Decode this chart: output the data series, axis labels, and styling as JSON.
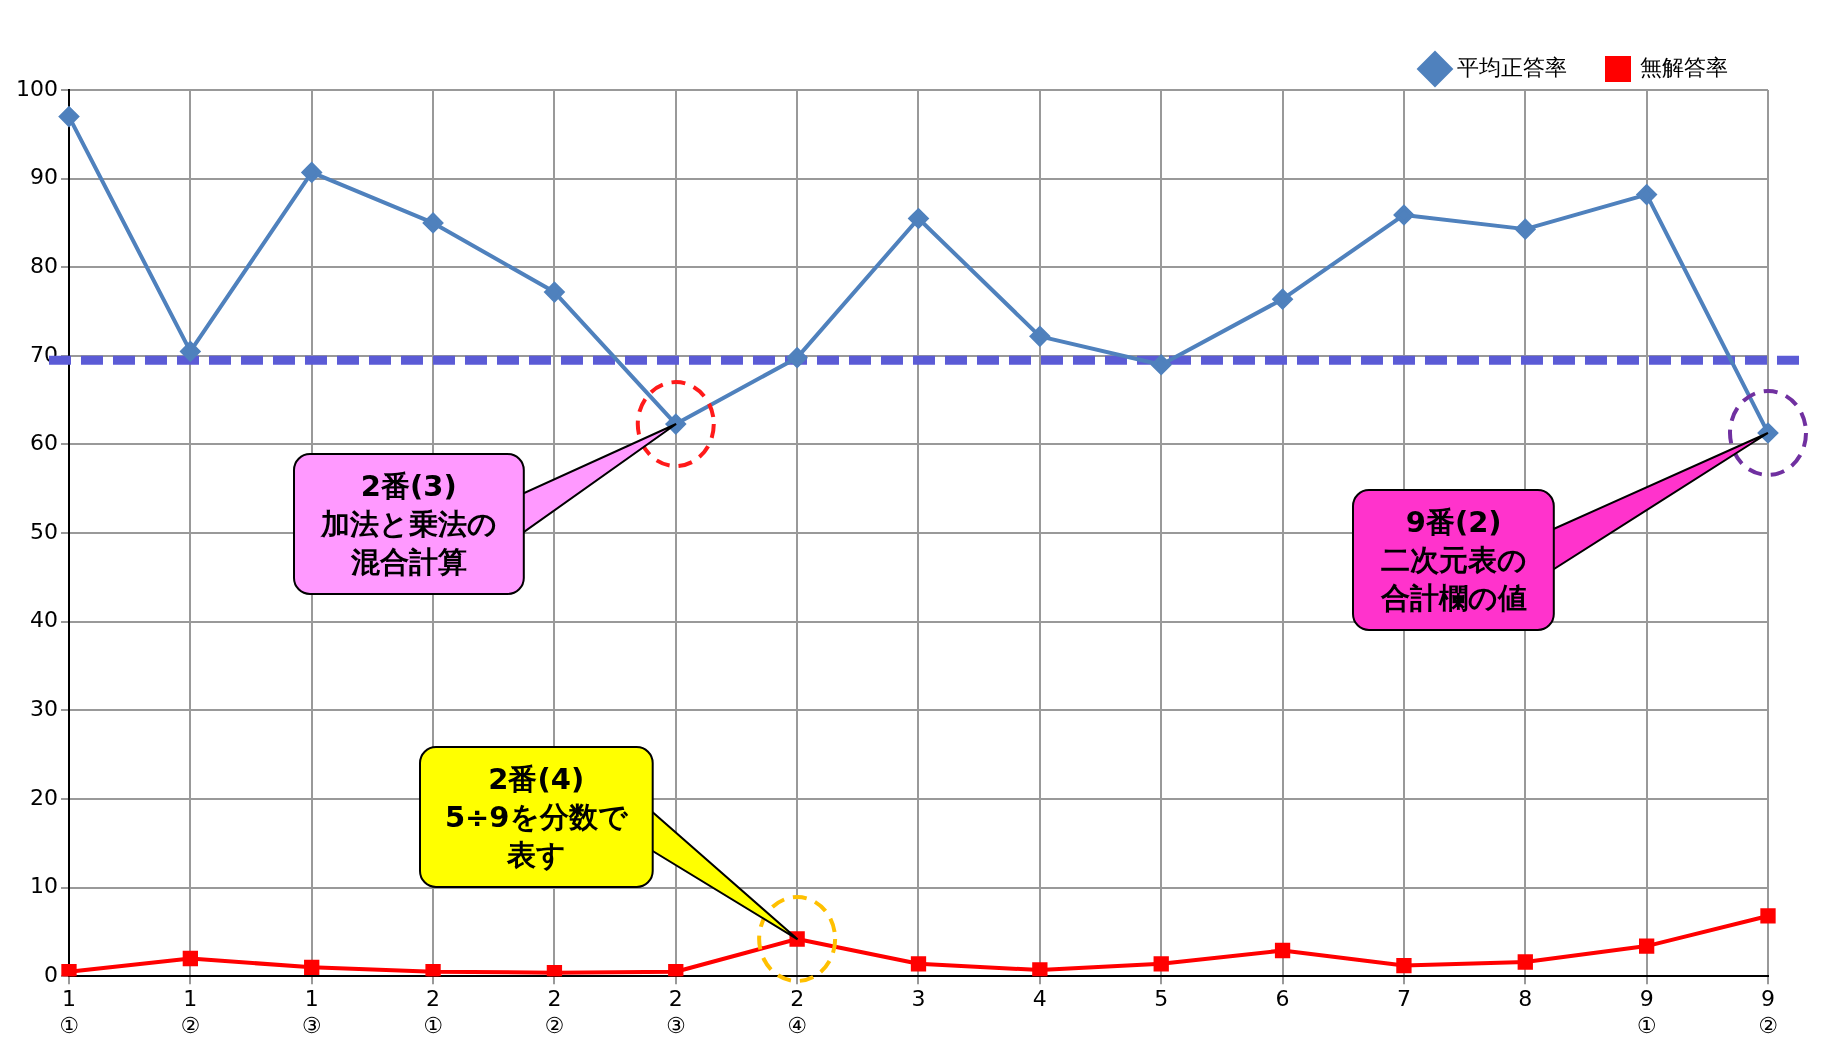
{
  "chart_data": {
    "type": "line",
    "categories": [
      "1\n①",
      "1\n②",
      "1\n③",
      "2\n①",
      "2\n②",
      "2\n③",
      "2\n④",
      "3",
      "4",
      "5",
      "6",
      "7",
      "8",
      "9\n①",
      "9\n②"
    ],
    "series": [
      {
        "name": "平均正答率",
        "color": "#4f81bd",
        "marker": "diamond",
        "values": [
          97,
          70.5,
          90.7,
          85,
          77.2,
          62.3,
          69.8,
          85.5,
          72.2,
          69,
          76.4,
          85.9,
          84.3,
          88.2,
          61.3
        ]
      },
      {
        "name": "無解答率",
        "color": "#ff0000",
        "marker": "square",
        "values": [
          0.5,
          2,
          1,
          0.5,
          0.4,
          0.5,
          4.2,
          1.4,
          0.7,
          1.4,
          2.9,
          1.2,
          1.6,
          3.4,
          6.8
        ]
      }
    ],
    "ylim": [
      0,
      100
    ],
    "yticks": [
      0,
      10,
      20,
      30,
      40,
      50,
      60,
      70,
      80,
      90,
      100
    ],
    "grid": true,
    "legend": "top right",
    "line_style": "solid",
    "ref_lines": [
      {
        "axis": "y",
        "value": 69.5,
        "color": "#5b5bd6",
        "line_style": "dashed"
      }
    ],
    "annotations": [
      "2番(3)\n加法と乗法の混合計算",
      "2番(4)\n5÷9を分数で表す",
      "9番(2)\n二次元表の合計欄の値"
    ]
  }
}
